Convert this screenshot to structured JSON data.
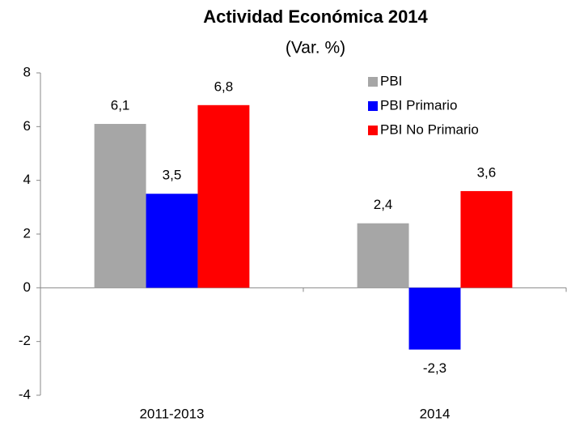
{
  "chart_data": {
    "type": "bar",
    "title": "Actividad Económica 2014",
    "subtitle": "(Var. %)",
    "categories": [
      "2011-2013",
      "2014"
    ],
    "series": [
      {
        "name": "PBI",
        "color": "#a6a6a6",
        "values": [
          6.1,
          2.4
        ],
        "value_labels": [
          "6,1",
          "2,4"
        ]
      },
      {
        "name": "PBI Primario",
        "color": "#0000ff",
        "values": [
          3.5,
          -2.3
        ],
        "value_labels": [
          "3,5",
          "-2,3"
        ]
      },
      {
        "name": "PBI No Primario",
        "color": "#ff0000",
        "values": [
          6.8,
          3.6
        ],
        "value_labels": [
          "6,8",
          "3,6"
        ]
      }
    ],
    "ylim": [
      -4,
      8
    ],
    "yticks": [
      -4,
      -2,
      0,
      2,
      4,
      6,
      8
    ],
    "grid": false,
    "legend": "top-right"
  }
}
